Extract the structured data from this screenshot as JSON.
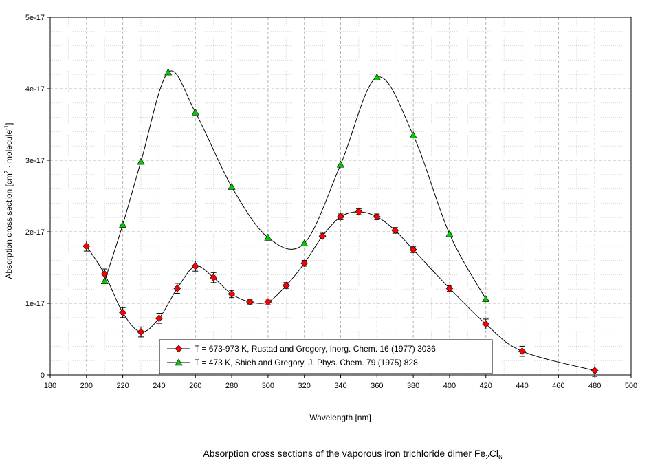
{
  "chart_data": {
    "type": "line",
    "xlabel": "Wavelength [nm]",
    "ylabel": {
      "main": "Absorption cross section [cm",
      "sup1": "2",
      "mid": " · molecule",
      "sup2": "-1",
      "end": "]"
    },
    "caption": {
      "main": "Absorption cross sections of the vaporous iron trichloride dimer Fe",
      "sub1": "2",
      "mid": "Cl",
      "sub2": "6"
    },
    "xlim": [
      180,
      500
    ],
    "ylim": [
      0,
      5e-17
    ],
    "xticks": [
      180,
      200,
      220,
      240,
      260,
      280,
      300,
      320,
      340,
      360,
      380,
      400,
      420,
      440,
      460,
      480,
      500
    ],
    "yticks": [
      0,
      1e-17,
      2e-17,
      3e-17,
      4e-17,
      5e-17
    ],
    "ytick_labels": [
      "0",
      "1e-17",
      "2e-17",
      "3e-17",
      "4e-17",
      "5e-17"
    ],
    "grid": true,
    "legend_position": "bottom-center",
    "series": [
      {
        "name": "T = 673-973 K, Rustad and Gregory, Inorg. Chem. 16 (1977) 3036",
        "marker": "diamond",
        "color": "#ff0000",
        "x": [
          200,
          210,
          220,
          230,
          240,
          250,
          260,
          270,
          280,
          290,
          300,
          310,
          320,
          330,
          340,
          350,
          360,
          370,
          380,
          400,
          420,
          440,
          480
        ],
        "y": [
          1.8e-17,
          1.41e-17,
          8.7e-18,
          6e-18,
          7.9e-18,
          1.21e-17,
          1.52e-17,
          1.36e-17,
          1.13e-17,
          1.02e-17,
          1.02e-17,
          1.25e-17,
          1.56e-17,
          1.94e-17,
          2.21e-17,
          2.28e-17,
          2.21e-17,
          2.02e-17,
          1.75e-17,
          1.21e-17,
          7.1e-18,
          3.3e-18,
          6e-19
        ],
        "yerr": [
          7e-19,
          7e-19,
          7e-19,
          7e-19,
          7e-19,
          7e-19,
          7e-19,
          7e-19,
          5e-19,
          3e-19,
          4e-19,
          4e-19,
          4e-19,
          4e-19,
          4e-19,
          4e-19,
          4e-19,
          4e-19,
          4e-19,
          4e-19,
          7e-19,
          7e-19,
          8e-19
        ]
      },
      {
        "name": "T = 473 K, Shieh and Gregory, J. Phys. Chem. 79 (1975) 828",
        "marker": "triangle",
        "color": "#00cc00",
        "x": [
          210,
          220,
          230,
          245,
          260,
          280,
          300,
          320,
          340,
          360,
          380,
          400,
          420
        ],
        "y": [
          1.31e-17,
          2.1e-17,
          2.98e-17,
          4.23e-17,
          3.67e-17,
          2.63e-17,
          1.92e-17,
          1.84e-17,
          2.94e-17,
          4.16e-17,
          3.35e-17,
          1.97e-17,
          1.06e-17
        ]
      }
    ]
  }
}
